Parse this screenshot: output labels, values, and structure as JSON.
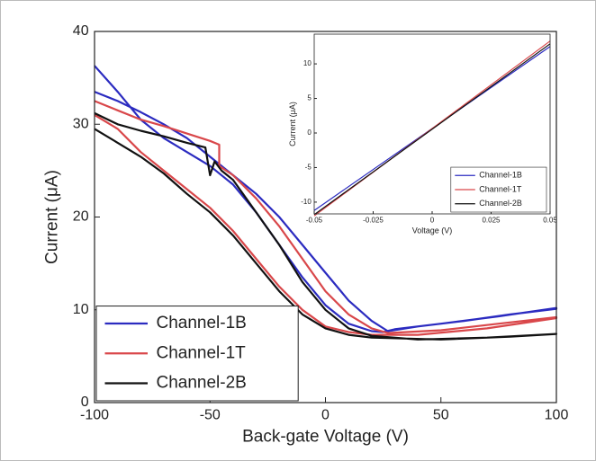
{
  "chart_data": [
    {
      "type": "line",
      "xlabel": "Back-gate Voltage (V)",
      "ylabel": "Current (μA)",
      "xlim": [
        -100,
        100
      ],
      "xticks": [
        -100,
        -50,
        0,
        50,
        100
      ],
      "ylim": [
        0,
        40
      ],
      "yticks": [
        0,
        10,
        20,
        30,
        40
      ],
      "legend": "lower left",
      "series": [
        {
          "name": "Channel-1B",
          "color": "#2b2bc0",
          "x": [
            -100,
            -90,
            -80,
            -70,
            -60,
            -50,
            -40,
            -30,
            -20,
            -10,
            0,
            10,
            20,
            25,
            30,
            50,
            75,
            100,
            100,
            80,
            60,
            40,
            27,
            20,
            10,
            0,
            -10,
            -20,
            -30,
            -40,
            -50,
            -60,
            -70,
            -80,
            -90,
            -100
          ],
          "values": [
            36.3,
            33.5,
            30.5,
            28.5,
            27,
            25.5,
            23.5,
            20.5,
            17,
            13.5,
            10.5,
            8.5,
            7.7,
            7.6,
            7.9,
            8.5,
            9.3,
            10.2,
            10.1,
            9.5,
            8.8,
            8.2,
            7.7,
            8.8,
            11,
            14,
            17,
            20,
            22.5,
            24.5,
            26.5,
            28.5,
            30,
            31.3,
            32.5,
            33.5
          ]
        },
        {
          "name": "Channel-1T",
          "color": "#d9474a",
          "x": [
            -100,
            -90,
            -80,
            -70,
            -60,
            -50,
            -46,
            -46,
            -40,
            -30,
            -20,
            -10,
            0,
            10,
            20,
            27,
            50,
            75,
            100,
            100,
            70,
            40,
            20,
            10,
            0,
            -10,
            -20,
            -30,
            -40,
            -50,
            -60,
            -70,
            -80,
            -90,
            -100
          ],
          "values": [
            32.5,
            31.5,
            30.5,
            29.8,
            29,
            28.2,
            27.8,
            25.5,
            24.5,
            22,
            19,
            15.5,
            12,
            9.5,
            8,
            7.5,
            7.8,
            8.5,
            9.2,
            9.1,
            8,
            7.3,
            7.3,
            7.6,
            8.2,
            10,
            12.5,
            15.5,
            18.5,
            21,
            23,
            25,
            27,
            29.5,
            31
          ]
        },
        {
          "name": "Channel-2B",
          "color": "#111111",
          "x": [
            -100,
            -90,
            -80,
            -70,
            -60,
            -52,
            -50,
            -48,
            -45,
            -40,
            -30,
            -20,
            -10,
            0,
            10,
            20,
            40,
            70,
            100,
            100,
            80,
            50,
            20,
            10,
            0,
            -10,
            -20,
            -30,
            -40,
            -50,
            -60,
            -70,
            -80,
            -90,
            -100
          ],
          "values": [
            31.2,
            30,
            29.3,
            28.7,
            28,
            27.5,
            24.5,
            26,
            25,
            24,
            20.5,
            17,
            13,
            10,
            8,
            7.2,
            6.8,
            7,
            7.4,
            7.4,
            7.1,
            6.8,
            7,
            7.3,
            8,
            9.5,
            12,
            15,
            18,
            20.5,
            22.5,
            24.7,
            26.5,
            28,
            29.5
          ]
        }
      ]
    },
    {
      "type": "line",
      "xlabel": "Voltage (V)",
      "ylabel": "Current (μA)",
      "xlim": [
        -0.05,
        0.05
      ],
      "xticks": [
        -0.05,
        -0.025,
        0,
        0.025,
        0.05
      ],
      "ylim": [
        -11.7,
        14.3
      ],
      "yticks": [
        -10,
        -5,
        0,
        5,
        10
      ],
      "legend": "lower right",
      "series": [
        {
          "name": "Channel-1B",
          "color": "#2b2bc0",
          "x": [
            -0.05,
            0.05
          ],
          "values": [
            -11.2,
            12.5
          ]
        },
        {
          "name": "Channel-1T",
          "color": "#d9474a",
          "x": [
            -0.05,
            0.05
          ],
          "values": [
            -12,
            13.3
          ]
        },
        {
          "name": "Channel-2B",
          "color": "#111111",
          "x": [
            -0.05,
            0.05
          ],
          "values": [
            -11.8,
            12.9
          ]
        }
      ]
    }
  ]
}
